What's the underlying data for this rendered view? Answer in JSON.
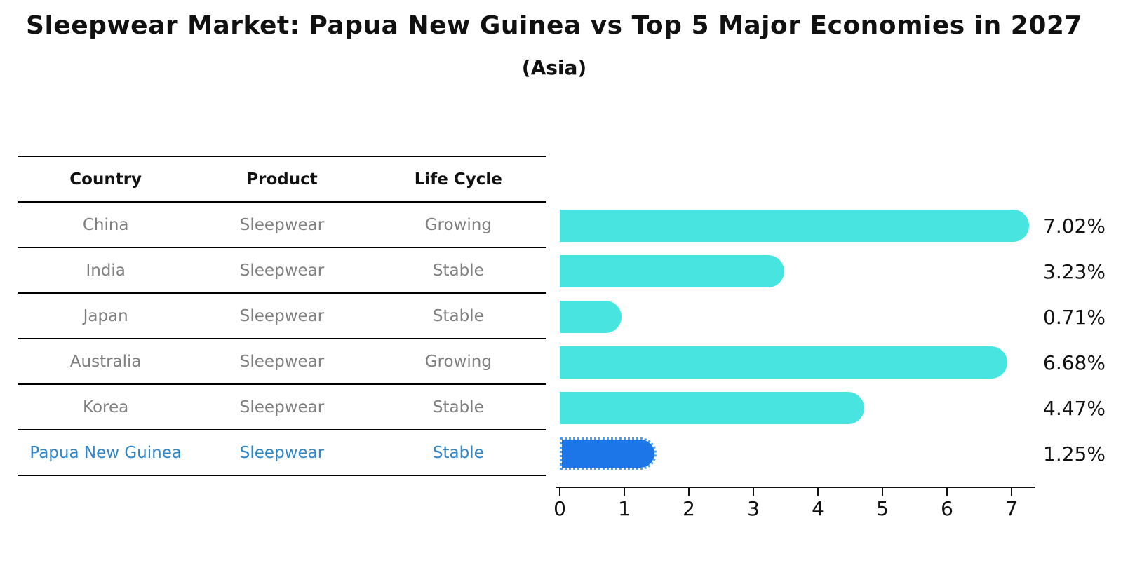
{
  "title": "Sleepwear Market: Papua New Guinea vs Top 5 Major Economies in 2027",
  "subtitle": "(Asia)",
  "table": {
    "headers": [
      "Country",
      "Product",
      "Life Cycle"
    ],
    "rows": [
      {
        "country": "China",
        "product": "Sleepwear",
        "life_cycle": "Growing",
        "highlighted": false
      },
      {
        "country": "India",
        "product": "Sleepwear",
        "life_cycle": "Stable",
        "highlighted": false
      },
      {
        "country": "Japan",
        "product": "Sleepwear",
        "life_cycle": "Stable",
        "highlighted": false
      },
      {
        "country": "Australia",
        "product": "Sleepwear",
        "life_cycle": "Growing",
        "highlighted": false
      },
      {
        "country": "Korea",
        "product": "Sleepwear",
        "life_cycle": "Stable",
        "highlighted": false
      },
      {
        "country": "Papua New Guinea",
        "product": "Sleepwear",
        "life_cycle": "Stable",
        "highlighted": true
      }
    ]
  },
  "chart_data": {
    "type": "bar",
    "orientation": "horizontal",
    "title": "Sleepwear Market: Papua New Guinea vs Top 5 Major Economies in 2027 (Asia)",
    "categories": [
      "China",
      "India",
      "Japan",
      "Australia",
      "Korea",
      "Papua New Guinea"
    ],
    "values": [
      7.02,
      3.23,
      0.71,
      6.68,
      4.47,
      1.25
    ],
    "value_labels": [
      "7.02%",
      "3.23%",
      "0.71%",
      "6.68%",
      "4.47%",
      "1.25%"
    ],
    "x_ticks": [
      0,
      1,
      2,
      3,
      4,
      5,
      6,
      7
    ],
    "xlim": [
      0,
      7.4
    ],
    "xlabel": "",
    "ylabel": "",
    "grid": false,
    "legend": "none",
    "highlight_index": 5,
    "highlight_edge_style": "dotted"
  },
  "colors": {
    "bar_cyan": "#48e5e0",
    "bar_blue": "#1d76e8",
    "bar_blue_edge": "#4d9def",
    "highlight_text": "#2e86c9",
    "row_text": "#7f7f7f",
    "axis": "#111111"
  }
}
